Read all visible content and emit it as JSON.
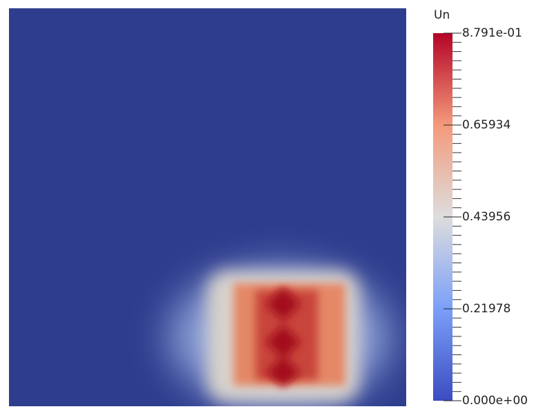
{
  "colorbar": {
    "title": "Un",
    "range": [
      0,
      0.8791
    ],
    "ticks": [
      {
        "value": 0.8791,
        "label": "8.791e-01"
      },
      0.65934,
      0.43956,
      0.21978,
      {
        "value": 0,
        "label": "0.000e+00"
      }
    ]
  }
}
